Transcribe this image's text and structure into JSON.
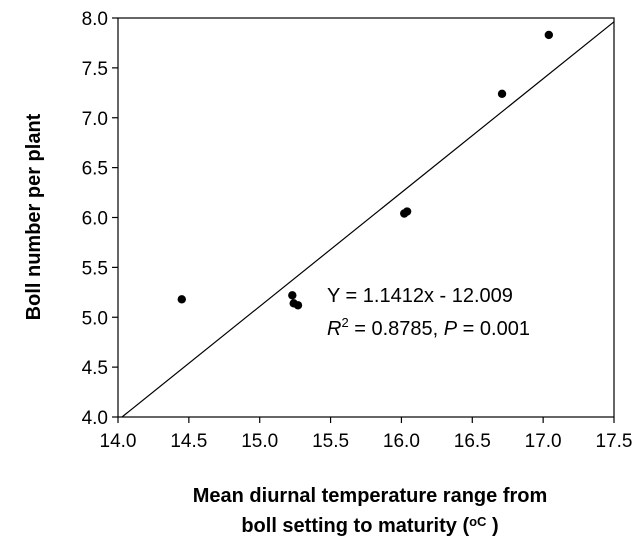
{
  "chart_data": {
    "type": "scatter",
    "title": "",
    "xlabel_line1": "Mean diurnal temperature range from",
    "xlabel_line2": "boll setting to maturity (",
    "xlabel_unit": "oC",
    "xlabel_close": " )",
    "ylabel": "Boll number per plant",
    "xlim": [
      14.0,
      17.5
    ],
    "ylim": [
      4.0,
      8.0
    ],
    "xticks": [
      "14.0",
      "14.5",
      "15.0",
      "15.5",
      "16.0",
      "16.5",
      "17.0",
      "17.5"
    ],
    "yticks": [
      "4.0",
      "4.5",
      "5.0",
      "5.5",
      "6.0",
      "6.5",
      "7.0",
      "7.5",
      "8.0"
    ],
    "grid": false,
    "points": [
      {
        "x": 14.45,
        "y": 5.18
      },
      {
        "x": 15.23,
        "y": 5.22
      },
      {
        "x": 15.24,
        "y": 5.14
      },
      {
        "x": 15.27,
        "y": 5.12
      },
      {
        "x": 16.02,
        "y": 6.04
      },
      {
        "x": 16.04,
        "y": 6.06
      },
      {
        "x": 16.71,
        "y": 7.24
      },
      {
        "x": 17.04,
        "y": 7.83
      }
    ],
    "fit": {
      "slope": 1.1412,
      "intercept": -12.009
    },
    "annotation": {
      "equation": "Y = 1.1412x - 12.009",
      "r_label": "R",
      "r_sup": "2",
      "r_value": " = 0.8785, ",
      "p_label": "P",
      "p_value": " = 0.001"
    }
  }
}
